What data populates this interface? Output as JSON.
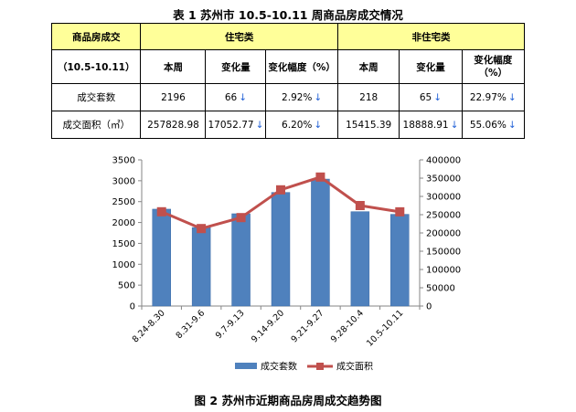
{
  "table": {
    "title": "表 1  苏州市 10.5-10.11 周商品房成交情况",
    "header": {
      "category": "商品房成交",
      "residential": "住宅类",
      "non_residential": "非住宅类"
    },
    "subheader": {
      "period": "（10.5-10.11）",
      "res_week": "本周",
      "res_change": "变化量",
      "res_pct": "变化幅度（%）",
      "non_week": "本周",
      "non_change": "变化量",
      "non_pct": "变化幅度（%）"
    },
    "rows": [
      {
        "label": "成交套数",
        "res_week": "2196",
        "res_change": "66",
        "res_pct": "2.92%",
        "non_week": "218",
        "non_change": "65",
        "non_pct": "22.97%"
      },
      {
        "label": "成交面积（㎡）",
        "res_week": "257828.98",
        "res_change": "17052.77",
        "res_pct": "6.20%",
        "non_week": "15415.39",
        "non_change": "18888.91",
        "non_pct": "55.06%"
      }
    ],
    "trend_arrow": "↓"
  },
  "chart_data": {
    "type": "bar",
    "title": "图 2  苏州市近期商品房周成交趋势图",
    "categories": [
      "8.24-8.30",
      "8.31-9.6",
      "9.7-9.13",
      "9.14-9.20",
      "9.21-9.27",
      "9.28-10.4",
      "10.5-10.11"
    ],
    "series": [
      {
        "name": "成交套数",
        "type": "bar",
        "axis": "left",
        "values": [
          2320,
          1880,
          2210,
          2720,
          3040,
          2260,
          2196
        ]
      },
      {
        "name": "成交面积",
        "type": "line",
        "axis": "right",
        "values": [
          258000,
          212000,
          242000,
          318000,
          353000,
          275000,
          257829
        ]
      }
    ],
    "ylim_left": [
      0,
      3500
    ],
    "yticks_left": [
      0,
      500,
      1000,
      1500,
      2000,
      2500,
      3000,
      3500
    ],
    "ylim_right": [
      0,
      400000
    ],
    "yticks_right": [
      0,
      50000,
      100000,
      150000,
      200000,
      250000,
      300000,
      350000,
      400000
    ],
    "legend_position": "bottom",
    "grid": false,
    "colors": {
      "bar": "#4f81bd",
      "bar_edge": "#3a6aa6",
      "line": "#c0504d",
      "axis": "#868686"
    }
  }
}
